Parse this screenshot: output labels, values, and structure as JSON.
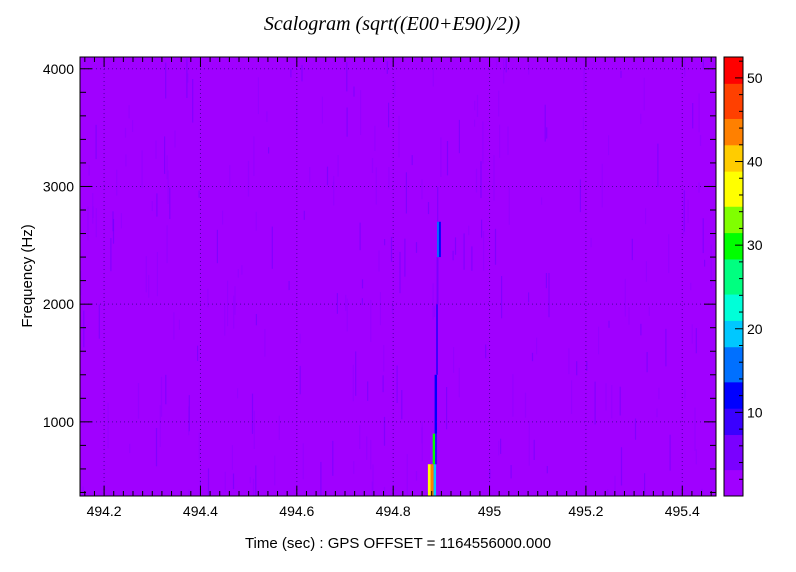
{
  "chart_data": {
    "type": "heatmap",
    "title": "Scalogram (sqrt((E00+E90)/2))",
    "xlabel": "Time (sec) : GPS OFFSET = 1164556000.000",
    "ylabel": "Frequency (Hz)",
    "xlim": [
      494.15,
      495.47
    ],
    "ylim": [
      370,
      4100
    ],
    "x_ticks": [
      "494.2",
      "494.4",
      "494.6",
      "494.8",
      "495",
      "495.2",
      "495.4"
    ],
    "x_tick_values": [
      494.2,
      494.4,
      494.6,
      494.8,
      495.0,
      495.2,
      495.4
    ],
    "y_ticks": [
      "1000",
      "2000",
      "3000",
      "4000"
    ],
    "y_tick_values": [
      1000,
      2000,
      3000,
      4000
    ],
    "grid": true,
    "background_value": 1,
    "colorbar": {
      "min": 0,
      "max": 52.5,
      "ticks": [
        "10",
        "20",
        "30",
        "40",
        "50"
      ],
      "tick_values": [
        10,
        20,
        30,
        40,
        50
      ],
      "palette": [
        "#a000ff",
        "#7a00ff",
        "#3a00ff",
        "#0000ff",
        "#0070ff",
        "#00c8ff",
        "#00ffd8",
        "#00ff80",
        "#00ff00",
        "#80ff00",
        "#ffff00",
        "#ffcc00",
        "#ff8000",
        "#ff4000",
        "#ff0000"
      ]
    },
    "hot_tiles": [
      {
        "t0": 494.872,
        "t1": 494.878,
        "f0": 370,
        "f1": 640,
        "value": 38
      },
      {
        "t0": 494.878,
        "t1": 494.884,
        "f0": 370,
        "f1": 640,
        "value": 44
      },
      {
        "t0": 494.884,
        "t1": 494.889,
        "f0": 370,
        "f1": 640,
        "value": 18
      },
      {
        "t0": 494.882,
        "t1": 494.887,
        "f0": 640,
        "f1": 900,
        "value": 28
      },
      {
        "t0": 494.887,
        "t1": 494.891,
        "f0": 640,
        "f1": 900,
        "value": 8
      },
      {
        "t0": 494.886,
        "t1": 494.891,
        "f0": 900,
        "f1": 1400,
        "value": 12
      },
      {
        "t0": 494.889,
        "t1": 494.893,
        "f0": 1400,
        "f1": 2000,
        "value": 9
      },
      {
        "t0": 494.89,
        "t1": 494.894,
        "f0": 2000,
        "f1": 2400,
        "value": 6
      },
      {
        "t0": 494.891,
        "t1": 494.895,
        "f0": 2400,
        "f1": 2700,
        "value": 16
      },
      {
        "t0": 494.895,
        "t1": 494.899,
        "f0": 2400,
        "f1": 2700,
        "value": 11
      }
    ]
  }
}
